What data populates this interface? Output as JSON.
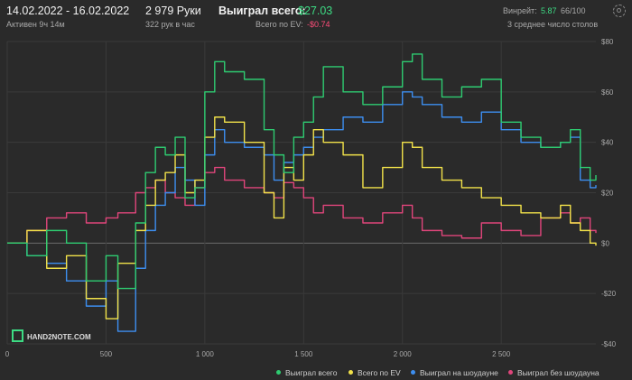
{
  "header": {
    "dates": "14.02.2022 - 16.02.2022",
    "active": "Активен 9ч 14м",
    "hands": "2 979 Руки",
    "per_hour": "322 рук в час",
    "won_label": "Выиграл всего:",
    "won_value": "$27.03",
    "ev_label": "Всего по EV:",
    "ev_value": "-$0.74",
    "winrate_label": "Винрейт:",
    "winrate_value": "5.87",
    "winrate_rest": "66/100",
    "tables": "3 среднее число столов"
  },
  "logo": {
    "text": "HAND2NOTE.COM"
  },
  "colors": {
    "won": "#2ecc71",
    "ev": "#f2e24a",
    "showdown": "#3d8ef0",
    "nonshowdown": "#e0457b"
  },
  "icons": {
    "settings": "gear-icon"
  },
  "chart_data": {
    "type": "line",
    "xlim": [
      0,
      2979
    ],
    "ylim": [
      -40,
      80
    ],
    "x_ticks": [
      0,
      500,
      1000,
      1500,
      2000,
      2500
    ],
    "x_tick_labels": [
      "0",
      "500",
      "1 000",
      "1 500",
      "2 000",
      "2 500"
    ],
    "y_ticks": [
      -40,
      -20,
      0,
      20,
      40,
      60,
      80
    ],
    "y_tick_labels": [
      "-$40",
      "-$20",
      "$0",
      "$20",
      "$40",
      "$60",
      "$80"
    ],
    "grid": true,
    "legend_position": "bottom-right",
    "x": [
      0,
      100,
      200,
      300,
      400,
      500,
      560,
      650,
      700,
      750,
      800,
      850,
      900,
      950,
      1000,
      1050,
      1100,
      1200,
      1300,
      1350,
      1400,
      1450,
      1500,
      1550,
      1600,
      1700,
      1800,
      1900,
      2000,
      2050,
      2100,
      2200,
      2300,
      2400,
      2500,
      2600,
      2700,
      2800,
      2850,
      2900,
      2950,
      2979
    ],
    "series": [
      {
        "name": "Выиграл всего",
        "values": [
          0,
          -5,
          5,
          0,
          -15,
          -5,
          -18,
          8,
          28,
          38,
          35,
          42,
          18,
          22,
          60,
          72,
          68,
          65,
          45,
          35,
          28,
          42,
          48,
          58,
          70,
          60,
          55,
          62,
          72,
          75,
          65,
          58,
          62,
          65,
          48,
          42,
          38,
          40,
          45,
          30,
          25,
          27
        ]
      },
      {
        "name": "Всего по EV",
        "values": [
          0,
          5,
          -10,
          -5,
          -22,
          -30,
          -8,
          5,
          15,
          25,
          28,
          35,
          20,
          25,
          42,
          50,
          48,
          40,
          20,
          10,
          30,
          25,
          35,
          45,
          40,
          35,
          22,
          30,
          40,
          38,
          30,
          25,
          22,
          18,
          15,
          12,
          10,
          15,
          8,
          5,
          0,
          -1
        ]
      },
      {
        "name": "Выиграл на шоудауне",
        "values": [
          0,
          -5,
          -8,
          -15,
          -25,
          -15,
          -35,
          -10,
          5,
          15,
          20,
          30,
          25,
          15,
          35,
          45,
          40,
          38,
          35,
          25,
          32,
          35,
          38,
          42,
          45,
          50,
          48,
          55,
          60,
          58,
          55,
          50,
          48,
          52,
          45,
          40,
          38,
          40,
          42,
          25,
          22,
          23
        ]
      },
      {
        "name": "Выиграл без шоудауна",
        "values": [
          0,
          5,
          10,
          12,
          8,
          10,
          12,
          20,
          22,
          25,
          20,
          18,
          15,
          22,
          28,
          30,
          25,
          22,
          20,
          18,
          24,
          22,
          18,
          12,
          15,
          10,
          8,
          12,
          15,
          10,
          5,
          3,
          2,
          8,
          5,
          3,
          10,
          12,
          8,
          10,
          5,
          4
        ]
      }
    ]
  },
  "legend": {
    "items": [
      {
        "label": "Выиграл всего",
        "color": "#2ecc71"
      },
      {
        "label": "Всего по EV",
        "color": "#f2e24a"
      },
      {
        "label": "Выиграл на шоудауне",
        "color": "#3d8ef0"
      },
      {
        "label": "Выиграл без шоудауна",
        "color": "#e0457b"
      }
    ]
  }
}
